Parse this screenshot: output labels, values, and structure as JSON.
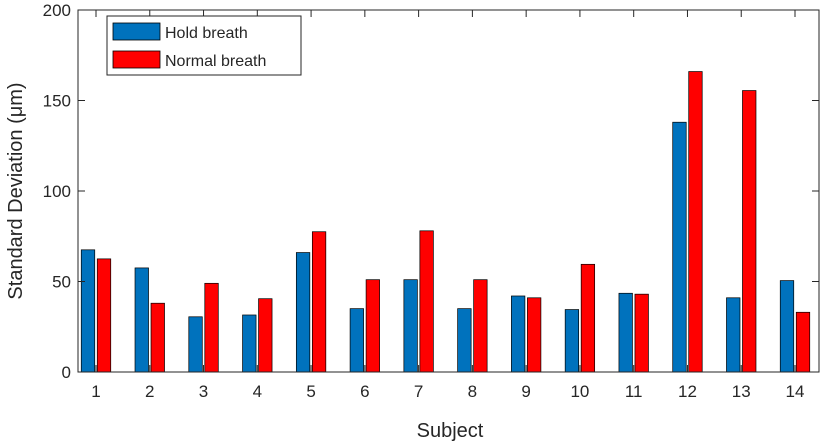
{
  "chart_data": {
    "type": "bar",
    "xlabel": "Subject",
    "ylabel": "Standard Deviation (μm)",
    "ylim": [
      0,
      200
    ],
    "yticks": [
      0,
      50,
      100,
      150,
      200
    ],
    "categories": [
      "1",
      "2",
      "3",
      "4",
      "5",
      "6",
      "7",
      "8",
      "9",
      "10",
      "11",
      "12",
      "13",
      "14"
    ],
    "series": [
      {
        "name": "Hold breath",
        "color": "#0072BD",
        "values": [
          67.5,
          57.5,
          30.5,
          31.5,
          66,
          35,
          51,
          35,
          42,
          34.5,
          43.5,
          138,
          41,
          50.5
        ]
      },
      {
        "name": "Normal breath",
        "color": "#FF0000",
        "values": [
          62.5,
          38,
          49,
          40.5,
          77.5,
          51,
          78,
          51,
          41,
          59.5,
          43,
          166,
          155.5,
          33
        ]
      }
    ],
    "legend_position": "top-left",
    "grid": false
  }
}
